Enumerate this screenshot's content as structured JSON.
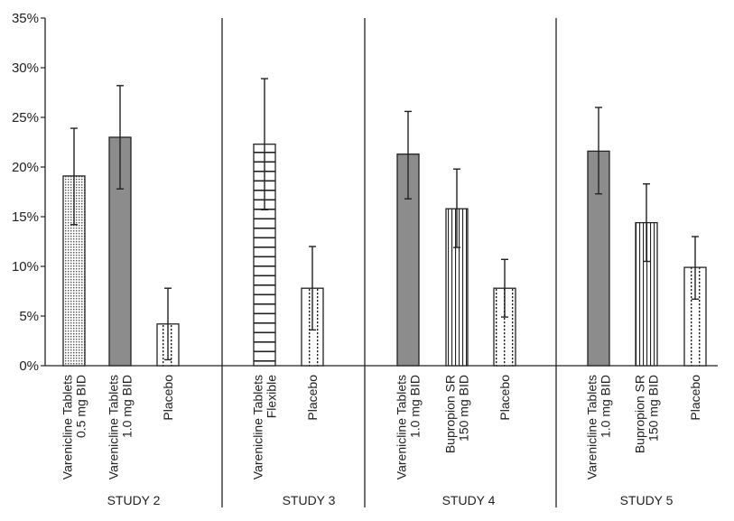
{
  "chart_data": {
    "type": "bar",
    "title": "",
    "xlabel": "",
    "ylabel": "",
    "ylim": [
      0,
      35
    ],
    "yticks": [
      "0%",
      "5%",
      "10%",
      "15%",
      "20%",
      "25%",
      "30%",
      "35%"
    ],
    "grid": false,
    "groups": [
      {
        "name": "STUDY 2",
        "bars": [
          {
            "label": [
              "Varenicline Tablets",
              "0.5 mg BID"
            ],
            "value": 19.1,
            "err_low": 14.2,
            "err_high": 23.9,
            "pattern": "dots"
          },
          {
            "label": [
              "Varenicline Tablets",
              "1.0 mg BID"
            ],
            "value": 23.0,
            "err_low": 17.8,
            "err_high": 28.2,
            "pattern": "gray"
          },
          {
            "label": [
              "Placebo"
            ],
            "value": 4.2,
            "err_low": 0.6,
            "err_high": 7.8,
            "pattern": "dotted-lines"
          }
        ]
      },
      {
        "name": "STUDY 3",
        "bars": [
          {
            "label": [
              "Varenicline Tablets",
              "Flexible"
            ],
            "value": 22.3,
            "err_low": 15.7,
            "err_high": 28.9,
            "pattern": "horizontal"
          },
          {
            "label": [
              "Placebo"
            ],
            "value": 7.8,
            "err_low": 3.6,
            "err_high": 12.0,
            "pattern": "dotted-lines"
          }
        ]
      },
      {
        "name": "STUDY 4",
        "bars": [
          {
            "label": [
              "Varenicline Tablets",
              "1.0 mg BID"
            ],
            "value": 21.3,
            "err_low": 16.8,
            "err_high": 25.6,
            "pattern": "gray"
          },
          {
            "label": [
              "Bupropion SR",
              "150 mg BID"
            ],
            "value": 15.8,
            "err_low": 11.9,
            "err_high": 19.8,
            "pattern": "vertical"
          },
          {
            "label": [
              "Placebo"
            ],
            "value": 7.8,
            "err_low": 4.9,
            "err_high": 10.7,
            "pattern": "dotted-lines"
          }
        ]
      },
      {
        "name": "STUDY 5",
        "bars": [
          {
            "label": [
              "Varenicline Tablets",
              "1.0 mg BID"
            ],
            "value": 21.6,
            "err_low": 17.3,
            "err_high": 26.0,
            "pattern": "gray"
          },
          {
            "label": [
              "Bupropion SR",
              "150 mg BID"
            ],
            "value": 14.4,
            "err_low": 10.5,
            "err_high": 18.3,
            "pattern": "vertical"
          },
          {
            "label": [
              "Placebo"
            ],
            "value": 9.9,
            "err_low": 6.7,
            "err_high": 13.0,
            "pattern": "dotted-lines"
          }
        ]
      }
    ],
    "colors": {
      "gray_fill": "#8c8c8c",
      "line": "#222222"
    }
  }
}
